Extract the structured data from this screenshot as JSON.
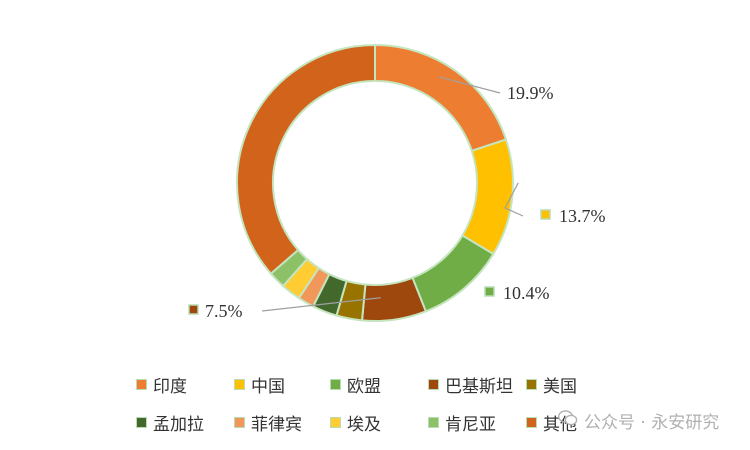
{
  "chart_data": {
    "type": "donut",
    "categories": [
      "印度",
      "中国",
      "欧盟",
      "巴基斯坦",
      "美国",
      "孟加拉",
      "菲律宾",
      "埃及",
      "肯尼亚",
      "其他"
    ],
    "values": [
      19.9,
      13.7,
      10.4,
      7.5,
      3.0,
      2.9,
      1.9,
      2.3,
      2.0,
      36.4
    ],
    "data_labels": [
      {
        "index": 0,
        "text": "19.9%"
      },
      {
        "index": 1,
        "text": "13.7%"
      },
      {
        "index": 2,
        "text": "10.4%"
      },
      {
        "index": 3,
        "text": "7.5%"
      }
    ],
    "colors": [
      "#ED7D31",
      "#FFC000",
      "#70AD47",
      "#9E480E",
      "#997300",
      "#43682B",
      "#F1975A",
      "#FFCD33",
      "#8CC168",
      "#D2631A"
    ],
    "legend": {
      "position": "bottom",
      "rows": [
        [
          "印度",
          "中国",
          "欧盟",
          "巴基斯坦",
          "美国"
        ],
        [
          "孟加拉",
          "菲律宾",
          "埃及",
          "肯尼亚",
          "其他"
        ]
      ]
    }
  },
  "watermark": {
    "icon": "wechat-icon",
    "text": "公众号 · 永安研究"
  }
}
